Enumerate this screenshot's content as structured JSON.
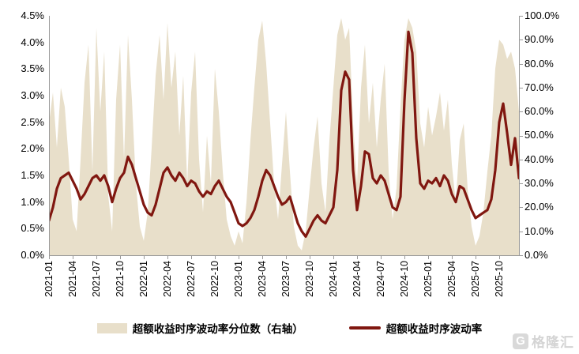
{
  "chart_data": {
    "type": "area+line",
    "x_start": "2021-01",
    "x_end": "2025-12",
    "samples_per_month": 2,
    "grid": "off",
    "legend_position": "bottom",
    "x_tick_labels": [
      "2021-01",
      "2021-04",
      "2021-07",
      "2021-10",
      "2022-01",
      "2022-04",
      "2022-07",
      "2022-10",
      "2023-01",
      "2023-04",
      "2023-07",
      "2023-10",
      "2024-01",
      "2024-04",
      "2024-07",
      "2024-10",
      "2025-01",
      "2025-04",
      "2025-07",
      "2025-10"
    ],
    "left_axis": {
      "min": 0,
      "max": 4.5,
      "ticks": [
        "4.5%",
        "4.0%",
        "3.5%",
        "3.0%",
        "2.5%",
        "2.0%",
        "1.5%",
        "1.0%",
        "0.5%",
        "0.0%"
      ]
    },
    "right_axis": {
      "min": 0,
      "max": 100,
      "ticks": [
        "100.0%",
        "90.0%",
        "80.0%",
        "70.0%",
        "60.0%",
        "50.0%",
        "40.0%",
        "30.0%",
        "20.0%",
        "10.0%",
        "0.0%"
      ]
    },
    "series": [
      {
        "name": "超额收益时序波动率分位数（右轴）",
        "type": "area",
        "axis": "right",
        "color": "#e8dfca",
        "values": [
          55,
          68,
          45,
          70,
          62,
          40,
          15,
          10,
          40,
          72,
          88,
          35,
          95,
          60,
          85,
          25,
          10,
          65,
          88,
          40,
          92,
          65,
          30,
          12,
          6,
          18,
          45,
          75,
          92,
          65,
          97,
          70,
          85,
          50,
          75,
          30,
          68,
          85,
          40,
          18,
          50,
          30,
          78,
          60,
          35,
          15,
          8,
          4,
          10,
          5,
          22,
          48,
          70,
          90,
          98,
          80,
          55,
          30,
          15,
          38,
          60,
          35,
          12,
          4,
          2,
          10,
          28,
          45,
          58,
          30,
          18,
          48,
          70,
          92,
          99,
          90,
          95,
          55,
          30,
          70,
          88,
          55,
          72,
          45,
          65,
          80,
          35,
          15,
          28,
          62,
          90,
          99,
          95,
          85,
          55,
          45,
          62,
          50,
          58,
          68,
          52,
          65,
          38,
          22,
          48,
          55,
          28,
          12,
          4,
          8,
          18,
          35,
          50,
          78,
          90,
          88,
          82,
          85,
          78,
          60
        ]
      },
      {
        "name": "超额收益时序波动率",
        "type": "line",
        "axis": "left",
        "color": "#801710",
        "values": [
          0.65,
          0.9,
          1.25,
          1.45,
          1.5,
          1.55,
          1.4,
          1.25,
          1.05,
          1.15,
          1.3,
          1.45,
          1.5,
          1.4,
          1.5,
          1.3,
          1.0,
          1.25,
          1.45,
          1.55,
          1.85,
          1.7,
          1.45,
          1.2,
          0.95,
          0.8,
          0.75,
          0.95,
          1.25,
          1.55,
          1.65,
          1.5,
          1.4,
          1.55,
          1.45,
          1.3,
          1.4,
          1.35,
          1.2,
          1.1,
          1.2,
          1.15,
          1.3,
          1.4,
          1.25,
          1.1,
          1.0,
          0.8,
          0.6,
          0.55,
          0.6,
          0.7,
          0.85,
          1.1,
          1.4,
          1.6,
          1.5,
          1.3,
          1.1,
          0.95,
          1.0,
          1.1,
          0.85,
          0.6,
          0.45,
          0.35,
          0.5,
          0.65,
          0.75,
          0.65,
          0.6,
          0.75,
          0.9,
          1.6,
          3.1,
          3.45,
          3.3,
          1.6,
          0.85,
          1.3,
          1.95,
          1.9,
          1.45,
          1.35,
          1.5,
          1.4,
          1.15,
          0.9,
          0.85,
          1.1,
          2.9,
          4.2,
          3.8,
          2.2,
          1.35,
          1.25,
          1.4,
          1.35,
          1.45,
          1.3,
          1.5,
          1.4,
          1.15,
          1.0,
          1.3,
          1.25,
          1.05,
          0.85,
          0.7,
          0.75,
          0.8,
          0.85,
          1.05,
          1.6,
          2.5,
          2.85,
          2.3,
          1.7,
          2.2,
          1.45
        ]
      }
    ]
  },
  "watermark": {
    "logo_letter": "G",
    "text": "格隆汇"
  }
}
